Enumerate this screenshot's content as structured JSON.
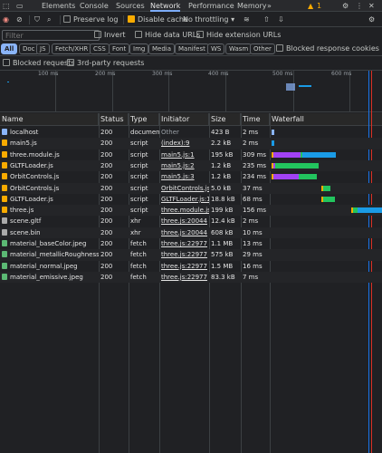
{
  "tabs": [
    {
      "label": "Elements"
    },
    {
      "label": "Console"
    },
    {
      "label": "Sources"
    },
    {
      "label": "Network"
    },
    {
      "label": "Performance"
    },
    {
      "label": "Memory"
    }
  ],
  "tabs_more": "»",
  "warning_count": "1",
  "toolbar": {
    "preserve_log": "Preserve log",
    "disable_cache": "Disable cache",
    "throttling": "No throttling"
  },
  "filter_bar": {
    "placeholder": "Filter",
    "invert": "Invert",
    "hide_data_urls": "Hide data URLs",
    "hide_extension_urls": "Hide extension URLs"
  },
  "type_chips": [
    "All",
    "Doc",
    "JS",
    "Fetch/XHR",
    "CSS",
    "Font",
    "Img",
    "Media",
    "Manifest",
    "WS",
    "Wasm",
    "Other"
  ],
  "blocked_response_cookies": "Blocked response cookies",
  "blocked_requests": "Blocked requests",
  "third_party_requests": "3rd-party requests",
  "overview_ticks": [
    "100 ms",
    "200 ms",
    "300 ms",
    "400 ms",
    "500 ms",
    "600 ms"
  ],
  "columns": {
    "name": "Name",
    "status": "Status",
    "type": "Type",
    "initiator": "Initiator",
    "size": "Size",
    "time": "Time",
    "waterfall": "Waterfall"
  },
  "colors": {
    "js": "#f9ab00",
    "xhr": "#aaaaaa",
    "doc": "#8ab4f8",
    "img": "#5bb974",
    "waiting": "#1a9be6",
    "download": "#22c55e",
    "stall": "#a142f4"
  },
  "requests": [
    {
      "name": "localhost",
      "status": "200",
      "type": "document",
      "initiator": "Other",
      "size": "423 B",
      "time": "2 ms",
      "kind": "doc"
    },
    {
      "name": "main5.js",
      "status": "200",
      "type": "script",
      "initiator": "(index):9",
      "size": "2.2 kB",
      "time": "2 ms",
      "kind": "js"
    },
    {
      "name": "three.module.js",
      "status": "200",
      "type": "script",
      "initiator": "main5.js:1",
      "size": "195 kB",
      "time": "309 ms",
      "kind": "js"
    },
    {
      "name": "GLTFLoader.js",
      "status": "200",
      "type": "script",
      "initiator": "main5.js:2",
      "size": "1.2 kB",
      "time": "235 ms",
      "kind": "js"
    },
    {
      "name": "OrbitControls.js",
      "status": "200",
      "type": "script",
      "initiator": "main5.js:3",
      "size": "1.2 kB",
      "time": "234 ms",
      "kind": "js"
    },
    {
      "name": "OrbitControls.js",
      "status": "200",
      "type": "script",
      "initiator": "OrbitControls.js:1",
      "size": "5.0 kB",
      "time": "37 ms",
      "kind": "js"
    },
    {
      "name": "GLTFLoader.js",
      "status": "200",
      "type": "script",
      "initiator": "GLTFLoader.js:1",
      "size": "18.8 kB",
      "time": "68 ms",
      "kind": "js"
    },
    {
      "name": "three.js",
      "status": "200",
      "type": "script",
      "initiator": "three.module.js",
      "size": "199 kB",
      "time": "156 ms",
      "kind": "js"
    },
    {
      "name": "scene.gltf",
      "status": "200",
      "type": "xhr",
      "initiator": "three.js:20044",
      "size": "12.4 kB",
      "time": "2 ms",
      "kind": "xhr"
    },
    {
      "name": "scene.bin",
      "status": "200",
      "type": "xhr",
      "initiator": "three.js:20044",
      "size": "608 kB",
      "time": "10 ms",
      "kind": "xhr"
    },
    {
      "name": "material_baseColor.jpeg",
      "status": "200",
      "type": "fetch",
      "initiator": "three.js:22977",
      "size": "1.1 MB",
      "time": "13 ms",
      "kind": "img"
    },
    {
      "name": "material_metallicRoughness.png",
      "status": "200",
      "type": "fetch",
      "initiator": "three.js:22977",
      "size": "575 kB",
      "time": "29 ms",
      "kind": "img"
    },
    {
      "name": "material_normal.jpeg",
      "status": "200",
      "type": "fetch",
      "initiator": "three.js:22977",
      "size": "1.5 MB",
      "time": "16 ms",
      "kind": "img"
    },
    {
      "name": "material_emissive.jpeg",
      "status": "200",
      "type": "fetch",
      "initiator": "three.js:22977",
      "size": "83.3 kB",
      "time": "7 ms",
      "kind": "img"
    }
  ]
}
